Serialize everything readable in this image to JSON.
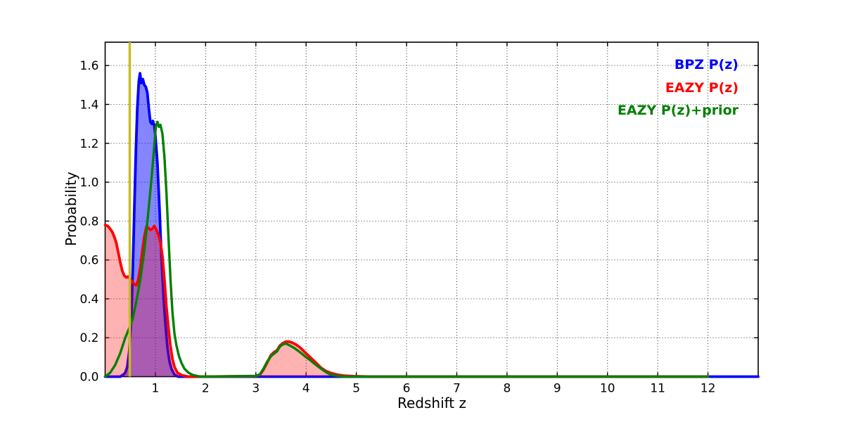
{
  "figure": {
    "background": "#ffffff"
  },
  "legend": {
    "frame": false,
    "position": "upper-right",
    "items": [
      {
        "label": "BPZ P(z)",
        "color": "#0000ff"
      },
      {
        "label": "EAZY P(z)",
        "color": "#ff0000"
      },
      {
        "label": "EAZY P(z)+prior",
        "color": "#008000"
      }
    ]
  },
  "chart_data": {
    "type": "line",
    "title": "",
    "xlabel": "Redshift z",
    "ylabel": "Probability",
    "xlim": [
      0,
      13
    ],
    "ylim": [
      0,
      1.72
    ],
    "xticks": [
      1,
      2,
      3,
      4,
      5,
      6,
      7,
      8,
      9,
      10,
      11,
      12
    ],
    "yticks": [
      0.0,
      0.2,
      0.4,
      0.6,
      0.8,
      1.0,
      1.2,
      1.4,
      1.6
    ],
    "grid": true,
    "grid_style": "dotted",
    "grid_color": "#333333",
    "vline": {
      "x": 0.49,
      "color": "#c8bd20",
      "linewidth": 3.5
    },
    "series": [
      {
        "name": "BPZ P(z)",
        "color": "#0000ff",
        "fill": true,
        "fill_opacity": 0.48,
        "linewidth": 3.8,
        "points": [
          [
            0,
            0
          ],
          [
            0.3,
            0
          ],
          [
            0.36,
            0.01
          ],
          [
            0.4,
            0.02
          ],
          [
            0.44,
            0.05
          ],
          [
            0.48,
            0.13
          ],
          [
            0.52,
            0.3
          ],
          [
            0.55,
            0.55
          ],
          [
            0.58,
            0.85
          ],
          [
            0.61,
            1.15
          ],
          [
            0.64,
            1.38
          ],
          [
            0.67,
            1.52
          ],
          [
            0.695,
            1.56
          ],
          [
            0.72,
            1.51
          ],
          [
            0.75,
            1.53
          ],
          [
            0.78,
            1.5
          ],
          [
            0.81,
            1.49
          ],
          [
            0.84,
            1.46
          ],
          [
            0.87,
            1.38
          ],
          [
            0.9,
            1.31
          ],
          [
            0.93,
            1.3
          ],
          [
            0.95,
            1.315
          ],
          [
            0.98,
            1.29
          ],
          [
            1.0,
            1.24
          ],
          [
            1.04,
            1.1
          ],
          [
            1.08,
            0.88
          ],
          [
            1.12,
            0.62
          ],
          [
            1.16,
            0.42
          ],
          [
            1.2,
            0.27
          ],
          [
            1.24,
            0.15
          ],
          [
            1.28,
            0.08
          ],
          [
            1.32,
            0.04
          ],
          [
            1.38,
            0.01
          ],
          [
            1.45,
            0
          ],
          [
            2,
            0
          ],
          [
            3,
            0
          ],
          [
            5,
            0
          ],
          [
            9,
            0
          ],
          [
            13,
            0
          ]
        ]
      },
      {
        "name": "EAZY P(z)",
        "color": "#ff0000",
        "fill": true,
        "fill_opacity": 0.3,
        "linewidth": 3.8,
        "points": [
          [
            0,
            0.78
          ],
          [
            0.05,
            0.775
          ],
          [
            0.1,
            0.76
          ],
          [
            0.14,
            0.745
          ],
          [
            0.18,
            0.72
          ],
          [
            0.22,
            0.69
          ],
          [
            0.26,
            0.64
          ],
          [
            0.3,
            0.59
          ],
          [
            0.34,
            0.545
          ],
          [
            0.38,
            0.52
          ],
          [
            0.42,
            0.51
          ],
          [
            0.46,
            0.515
          ],
          [
            0.5,
            0.5
          ],
          [
            0.54,
            0.49
          ],
          [
            0.58,
            0.475
          ],
          [
            0.62,
            0.47
          ],
          [
            0.66,
            0.5
          ],
          [
            0.7,
            0.56
          ],
          [
            0.74,
            0.65
          ],
          [
            0.78,
            0.72
          ],
          [
            0.82,
            0.77
          ],
          [
            0.86,
            0.765
          ],
          [
            0.9,
            0.755
          ],
          [
            0.94,
            0.76
          ],
          [
            0.98,
            0.775
          ],
          [
            1.02,
            0.755
          ],
          [
            1.06,
            0.73
          ],
          [
            1.1,
            0.69
          ],
          [
            1.14,
            0.62
          ],
          [
            1.18,
            0.5
          ],
          [
            1.22,
            0.36
          ],
          [
            1.26,
            0.25
          ],
          [
            1.3,
            0.155
          ],
          [
            1.34,
            0.09
          ],
          [
            1.38,
            0.05
          ],
          [
            1.44,
            0.02
          ],
          [
            1.52,
            0.008
          ],
          [
            1.65,
            0
          ],
          [
            2.0,
            0
          ],
          [
            3.0,
            0.003
          ],
          [
            3.08,
            0.01
          ],
          [
            3.15,
            0.035
          ],
          [
            3.22,
            0.07
          ],
          [
            3.3,
            0.11
          ],
          [
            3.36,
            0.125
          ],
          [
            3.42,
            0.135
          ],
          [
            3.48,
            0.16
          ],
          [
            3.54,
            0.172
          ],
          [
            3.6,
            0.18
          ],
          [
            3.66,
            0.18
          ],
          [
            3.72,
            0.175
          ],
          [
            3.8,
            0.165
          ],
          [
            3.88,
            0.15
          ],
          [
            3.96,
            0.13
          ],
          [
            4.04,
            0.11
          ],
          [
            4.12,
            0.09
          ],
          [
            4.2,
            0.07
          ],
          [
            4.3,
            0.045
          ],
          [
            4.4,
            0.028
          ],
          [
            4.5,
            0.018
          ],
          [
            4.62,
            0.01
          ],
          [
            4.75,
            0.005
          ],
          [
            4.95,
            0.002
          ],
          [
            5.3,
            0
          ],
          [
            12,
            0
          ]
        ]
      },
      {
        "name": "EAZY P(z)+prior",
        "color": "#008000",
        "fill": false,
        "fill_opacity": 0,
        "linewidth": 3.4,
        "points": [
          [
            0,
            0
          ],
          [
            0.1,
            0.02
          ],
          [
            0.2,
            0.06
          ],
          [
            0.3,
            0.12
          ],
          [
            0.4,
            0.2
          ],
          [
            0.48,
            0.25
          ],
          [
            0.55,
            0.3
          ],
          [
            0.63,
            0.4
          ],
          [
            0.7,
            0.5
          ],
          [
            0.78,
            0.65
          ],
          [
            0.85,
            0.82
          ],
          [
            0.92,
            1.01
          ],
          [
            0.97,
            1.16
          ],
          [
            1.01,
            1.285
          ],
          [
            1.04,
            1.31
          ],
          [
            1.07,
            1.285
          ],
          [
            1.1,
            1.295
          ],
          [
            1.14,
            1.25
          ],
          [
            1.18,
            1.13
          ],
          [
            1.22,
            0.95
          ],
          [
            1.26,
            0.72
          ],
          [
            1.3,
            0.5
          ],
          [
            1.34,
            0.33
          ],
          [
            1.38,
            0.22
          ],
          [
            1.42,
            0.16
          ],
          [
            1.47,
            0.105
          ],
          [
            1.52,
            0.07
          ],
          [
            1.58,
            0.04
          ],
          [
            1.66,
            0.02
          ],
          [
            1.75,
            0.008
          ],
          [
            1.9,
            0
          ],
          [
            3.0,
            0.003
          ],
          [
            3.08,
            0.012
          ],
          [
            3.15,
            0.04
          ],
          [
            3.22,
            0.075
          ],
          [
            3.3,
            0.105
          ],
          [
            3.36,
            0.118
          ],
          [
            3.42,
            0.13
          ],
          [
            3.48,
            0.155
          ],
          [
            3.54,
            0.166
          ],
          [
            3.6,
            0.17
          ],
          [
            3.68,
            0.16
          ],
          [
            3.76,
            0.148
          ],
          [
            3.84,
            0.133
          ],
          [
            3.92,
            0.117
          ],
          [
            4.0,
            0.1
          ],
          [
            4.08,
            0.085
          ],
          [
            4.16,
            0.068
          ],
          [
            4.24,
            0.052
          ],
          [
            4.32,
            0.037
          ],
          [
            4.4,
            0.022
          ],
          [
            4.48,
            0.012
          ],
          [
            4.58,
            0.005
          ],
          [
            4.75,
            0
          ],
          [
            12,
            0
          ]
        ]
      }
    ]
  }
}
